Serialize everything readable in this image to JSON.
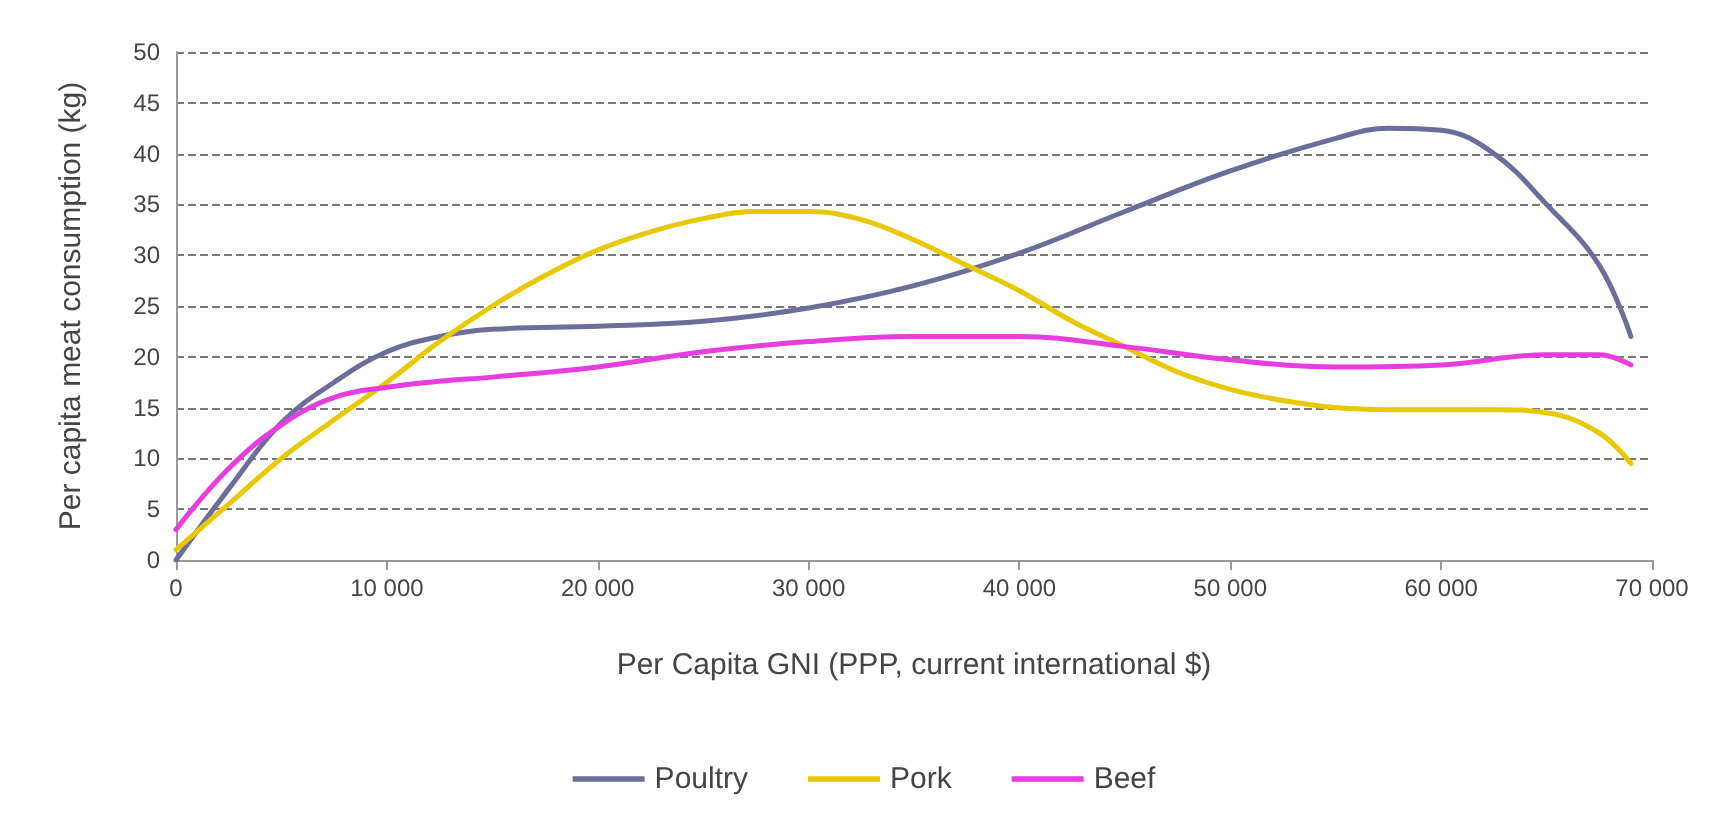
{
  "chart_data": {
    "type": "line",
    "xlabel": "Per Capita GNI (PPP, current international $)",
    "ylabel": "Per capita meat consumption (kg)",
    "xlim": [
      0,
      70000
    ],
    "xticks": [
      0,
      {
        "value": 10000,
        "label": "10 000"
      },
      {
        "value": 20000,
        "label": "20 000"
      },
      {
        "value": 30000,
        "label": "30 000"
      },
      {
        "value": 40000,
        "label": "40 000"
      },
      {
        "value": 50000,
        "label": "50 000"
      },
      {
        "value": 60000,
        "label": "60 000"
      },
      {
        "value": 70000,
        "label": "70 000"
      }
    ],
    "ylim": [
      0,
      50
    ],
    "yticks": [
      0,
      5,
      10,
      15,
      20,
      25,
      30,
      35,
      40,
      45,
      50
    ],
    "grid": "y",
    "legend": "bottom",
    "marker": "none",
    "line_style": "solid",
    "series": [
      {
        "name": "Poultry",
        "color": "#6b6e9a",
        "x": [
          0,
          2500,
          5000,
          7500,
          10000,
          12500,
          15000,
          20000,
          25000,
          30000,
          35000,
          40000,
          45000,
          50000,
          55000,
          57500,
          60000,
          62500,
          65000,
          67500,
          69000
        ],
        "values": [
          0,
          7,
          13.5,
          17.5,
          20.5,
          22,
          22.7,
          23,
          23.5,
          24.8,
          27,
          30.2,
          34.3,
          38.3,
          41.5,
          42.5,
          42.3,
          40,
          35,
          29,
          22
        ]
      },
      {
        "name": "Pork",
        "color": "#e8c800",
        "x": [
          0,
          2500,
          5000,
          7500,
          10000,
          12500,
          15000,
          17500,
          20000,
          22500,
          25000,
          27500,
          30000,
          32500,
          35000,
          37500,
          40000,
          42500,
          45000,
          47500,
          50000,
          52500,
          55000,
          57500,
          60000,
          62500,
          65000,
          67500,
          69000
        ],
        "values": [
          1,
          5.5,
          10,
          13.8,
          17.5,
          21.5,
          25,
          28,
          30.5,
          32.3,
          33.6,
          34.3,
          34.3,
          33.5,
          31.5,
          29,
          26.5,
          23.5,
          21,
          18.5,
          16.8,
          15.7,
          15,
          14.8,
          14.8,
          14.8,
          14.5,
          12.5,
          9.5
        ]
      },
      {
        "name": "Beef",
        "color": "#e83ce0",
        "x": [
          0,
          2500,
          5000,
          7500,
          10000,
          12500,
          15000,
          20000,
          25000,
          30000,
          35000,
          40000,
          45000,
          50000,
          55000,
          60000,
          65000,
          67500,
          69000
        ],
        "values": [
          3,
          9,
          13.3,
          16,
          17,
          17.6,
          18,
          19,
          20.5,
          21.5,
          22,
          22,
          21,
          19.7,
          19,
          19.2,
          20.2,
          20.2,
          19.2
        ]
      }
    ]
  }
}
